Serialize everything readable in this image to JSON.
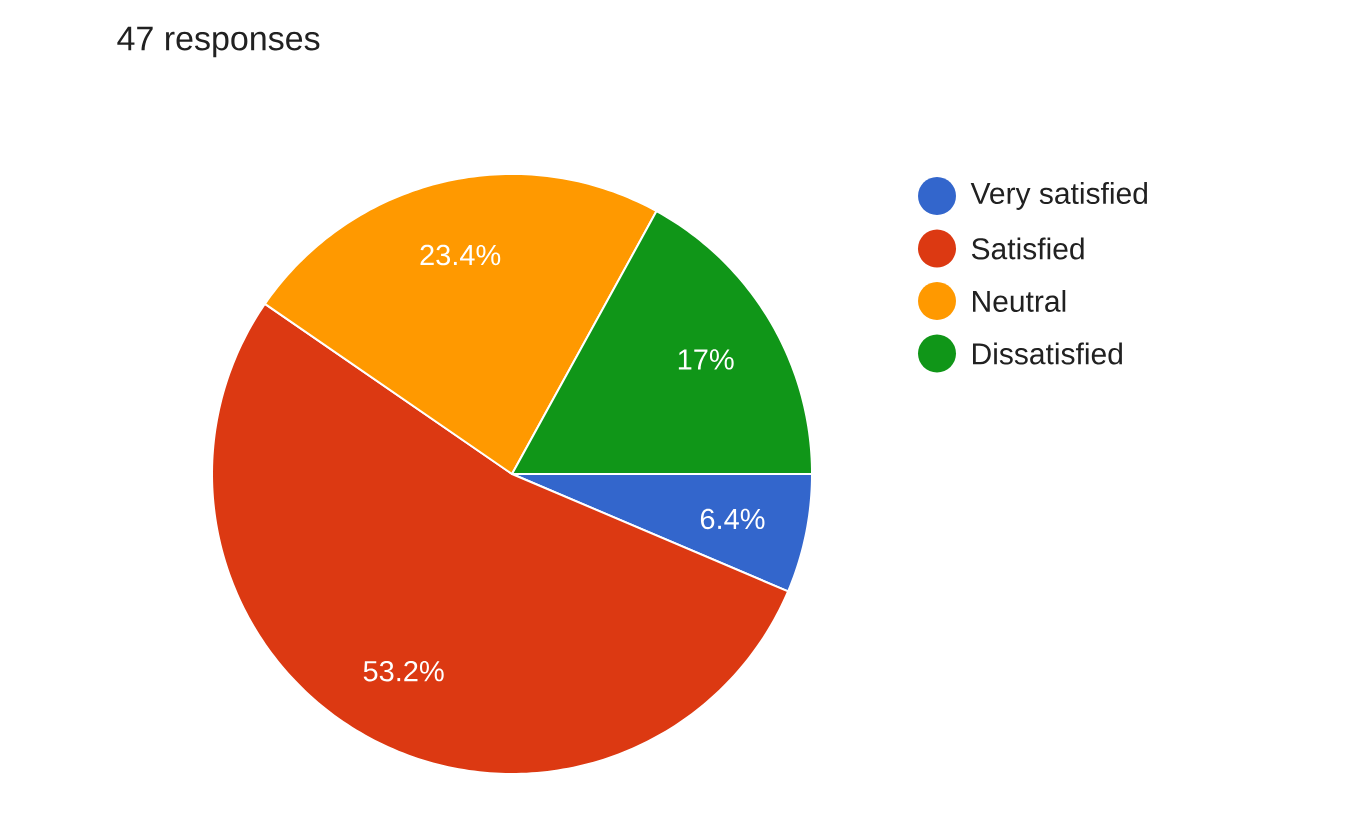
{
  "chart_data": {
    "type": "pie",
    "title": "47 responses",
    "categories": [
      "Very satisfied",
      "Satisfied",
      "Neutral",
      "Dissatisfied"
    ],
    "values": [
      6.4,
      53.2,
      23.4,
      17
    ],
    "colors": [
      "#3366cc",
      "#dc3912",
      "#ff9900",
      "#109618"
    ],
    "value_labels": [
      "6.4%",
      "53.2%",
      "23.4%",
      "17%"
    ],
    "legend": "right"
  }
}
